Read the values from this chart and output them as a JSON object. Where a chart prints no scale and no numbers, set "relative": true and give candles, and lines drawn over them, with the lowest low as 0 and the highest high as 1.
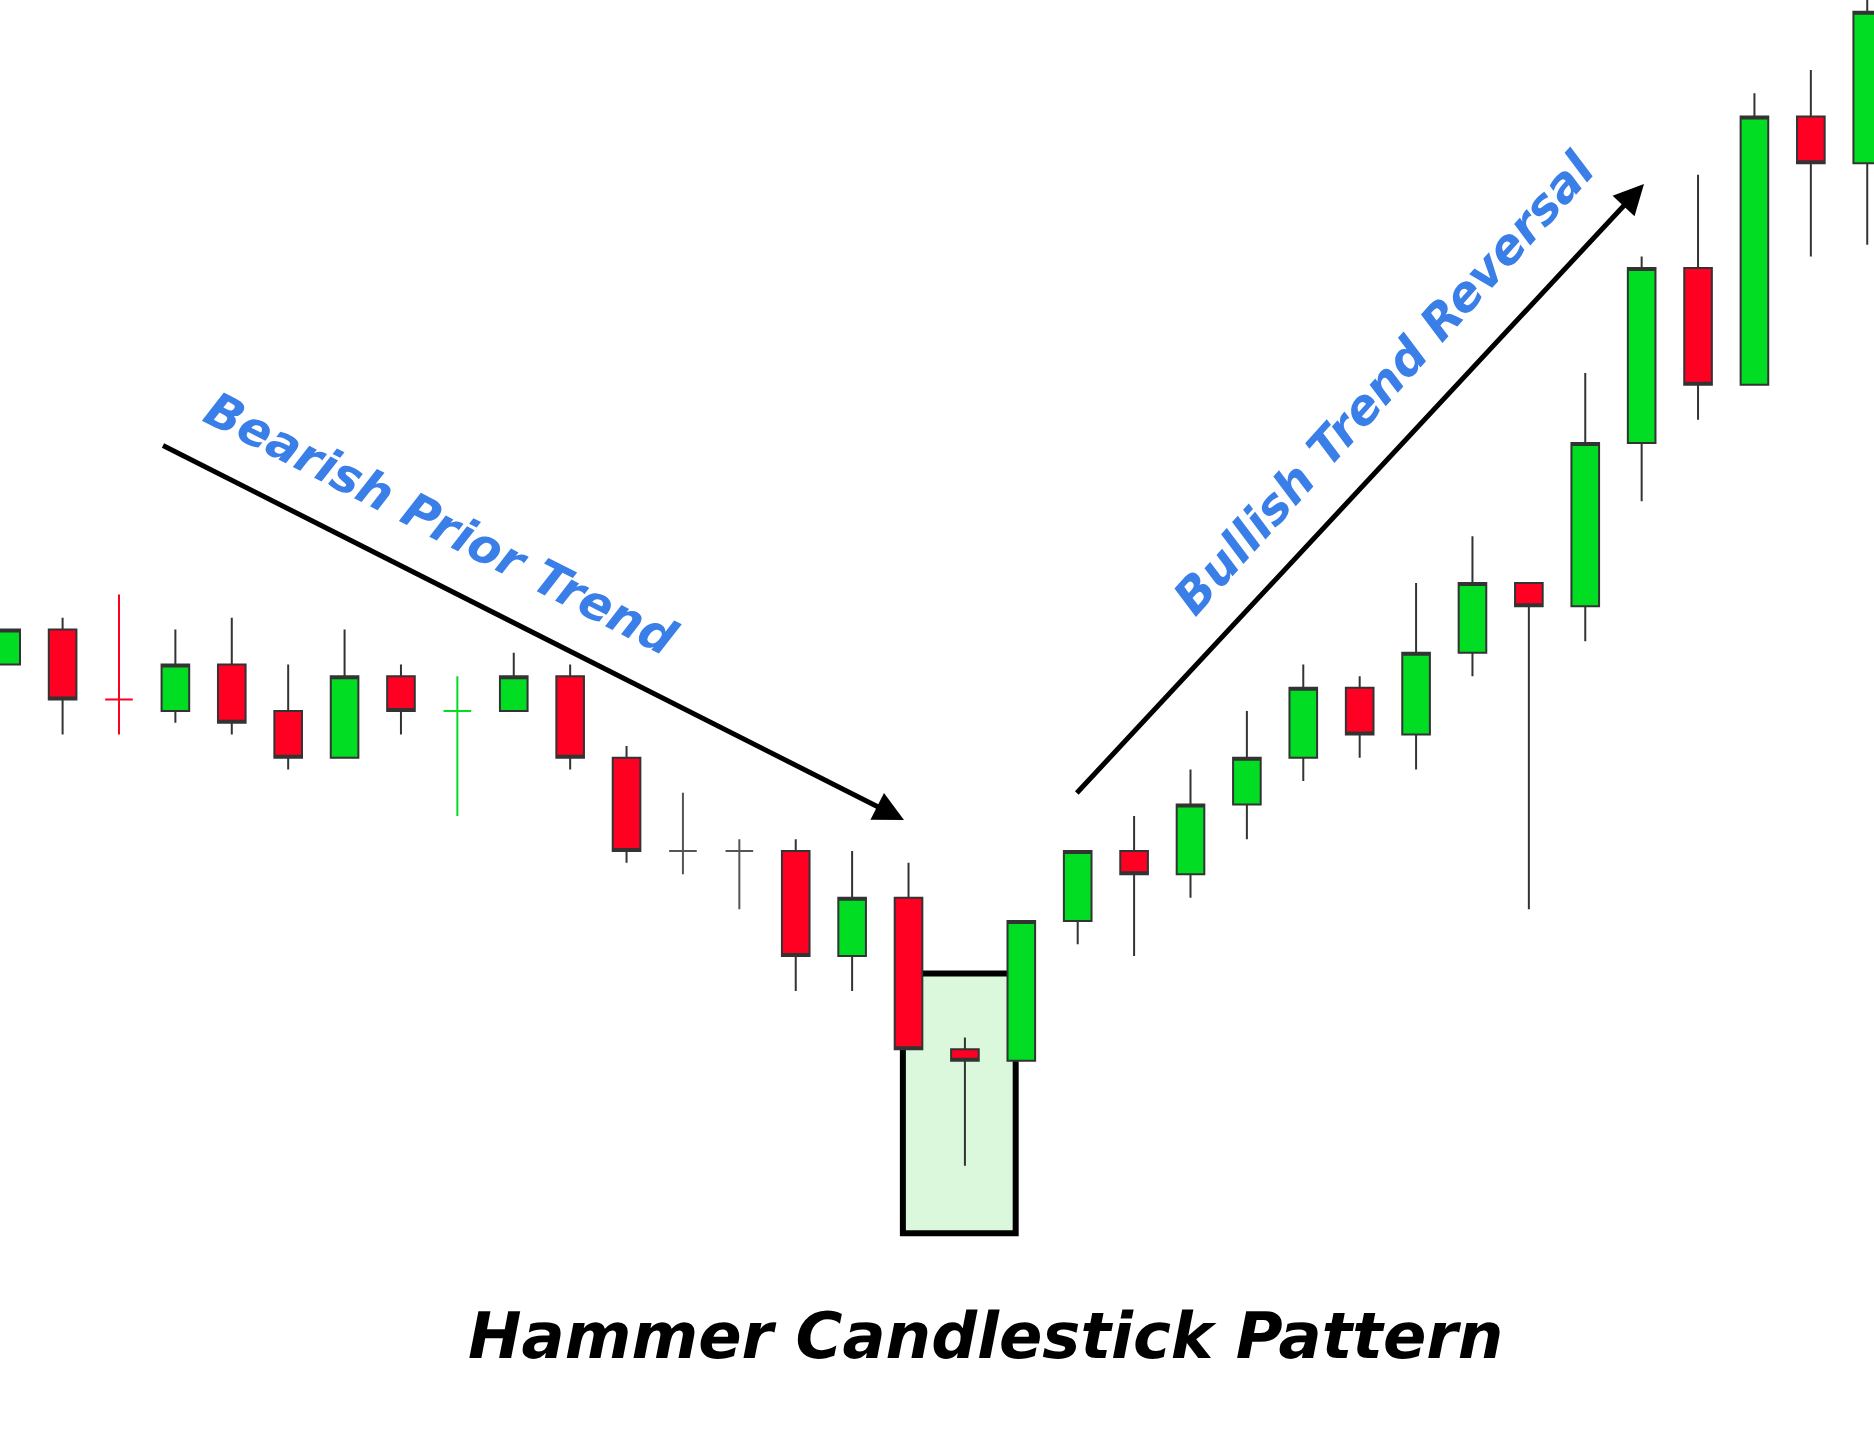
{
  "chart_data": {
    "type": "candlestick",
    "relative": true,
    "title": "Hammer Candlestick Pattern",
    "annotations": [
      "Bearish Prior Trend",
      "Bullish Trend Reversal"
    ],
    "categories": [
      null,
      null,
      null,
      null,
      null,
      null,
      null,
      null,
      null,
      null,
      null,
      null,
      null,
      null,
      null,
      null,
      null,
      null,
      null,
      null,
      null,
      null,
      null,
      null,
      null,
      null,
      null,
      null,
      null,
      null,
      null,
      null,
      null,
      null
    ],
    "ohlc": [
      [
        0.43,
        0.46,
        0.43,
        0.46
      ],
      [
        0.46,
        0.47,
        0.37,
        0.4
      ],
      [
        0.4,
        0.49,
        0.37,
        0.4
      ],
      [
        0.39,
        0.46,
        0.38,
        0.43
      ],
      [
        0.43,
        0.47,
        0.37,
        0.38
      ],
      [
        0.39,
        0.43,
        0.34,
        0.35
      ],
      [
        0.35,
        0.46,
        0.35,
        0.42
      ],
      [
        0.42,
        0.43,
        0.37,
        0.39
      ],
      [
        0.39,
        0.42,
        0.3,
        0.39
      ],
      [
        0.39,
        0.44,
        0.39,
        0.42
      ],
      [
        0.42,
        0.43,
        0.34,
        0.35
      ],
      [
        0.35,
        0.36,
        0.26,
        0.27
      ],
      [
        0.27,
        0.32,
        0.25,
        0.27
      ],
      [
        0.27,
        0.28,
        0.22,
        0.27
      ],
      [
        0.27,
        0.28,
        0.15,
        0.18
      ],
      [
        0.18,
        0.27,
        0.15,
        0.23
      ],
      [
        0.23,
        0.26,
        0.1,
        0.1
      ],
      [
        0.1,
        0.11,
        0,
        0.09
      ],
      [
        0.09,
        0.21,
        0.09,
        0.21
      ],
      [
        0.21,
        0.27,
        0.19,
        0.27
      ],
      [
        0.27,
        0.3,
        0.18,
        0.25
      ],
      [
        0.25,
        0.34,
        0.23,
        0.31
      ],
      [
        0.31,
        0.39,
        0.28,
        0.35
      ],
      [
        0.35,
        0.43,
        0.33,
        0.41
      ],
      [
        0.41,
        0.42,
        0.35,
        0.37
      ],
      [
        0.37,
        0.5,
        0.34,
        0.44
      ],
      [
        0.44,
        0.54,
        0.42,
        0.5
      ],
      [
        0.5,
        0.5,
        0.22,
        0.48
      ],
      [
        0.48,
        0.68,
        0.45,
        0.62
      ],
      [
        0.62,
        0.78,
        0.57,
        0.77
      ],
      [
        0.77,
        0.85,
        0.64,
        0.67
      ],
      [
        0.67,
        0.92,
        0.67,
        0.9
      ],
      [
        0.9,
        0.94,
        0.78,
        0.86
      ],
      [
        0.86,
        1,
        0.79,
        0.99
      ]
    ],
    "colors": [
      "#00dd22",
      "#ff0022",
      "#ff0022",
      "#00dd22",
      "#ff0022",
      "#ff0022",
      "#00dd22",
      "#ff0022",
      "#00dd22",
      "#00dd22",
      "#ff0022",
      "#ff0022",
      "#555555",
      "#555555",
      "#ff0022",
      "#00dd22",
      "#ff0022",
      "#ff0022",
      "#00dd22",
      "#00dd22",
      "#ff0022",
      "#00dd22",
      "#00dd22",
      "#00dd22",
      "#ff0022",
      "#00dd22",
      "#00dd22",
      "#ff0022",
      "#00dd22",
      "#00dd22",
      "#ff0022",
      "#00dd22",
      "#ff0022",
      "#00dd22"
    ]
  }
}
